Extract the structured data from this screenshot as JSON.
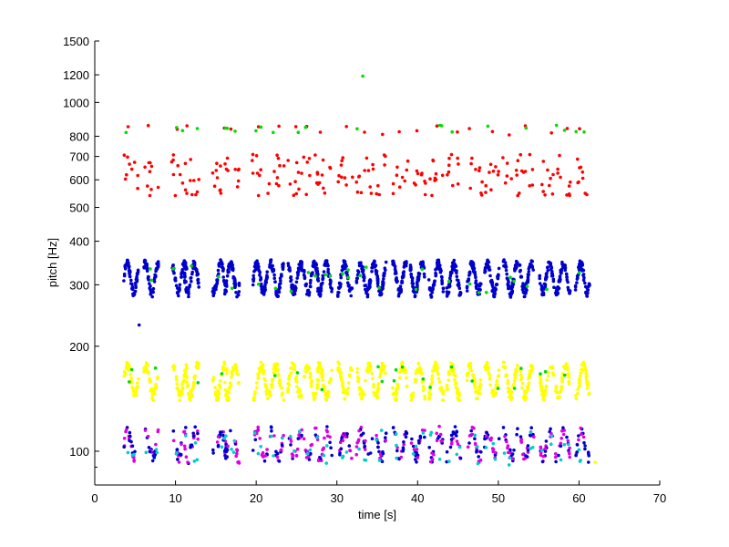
{
  "chart_data": {
    "type": "scatter",
    "title": "",
    "xlabel": "time [s]",
    "ylabel": "pitch [Hz]",
    "xlim": [
      0,
      70
    ],
    "ylim": [
      80,
      1500
    ],
    "yscale": "log",
    "grid": false,
    "legend": "none",
    "x_ticks": [
      {
        "value": 0,
        "label": "0"
      },
      {
        "value": 10,
        "label": "10"
      },
      {
        "value": 20,
        "label": "20"
      },
      {
        "value": 30,
        "label": "30"
      },
      {
        "value": 40,
        "label": "40"
      },
      {
        "value": 50,
        "label": "50"
      },
      {
        "value": 60,
        "label": "60"
      },
      {
        "value": 70,
        "label": "70"
      }
    ],
    "y_ticks": [
      {
        "value": 100,
        "label": "100"
      },
      {
        "value": 200,
        "label": "200"
      },
      {
        "value": 300,
        "label": "300"
      },
      {
        "value": 400,
        "label": "400"
      },
      {
        "value": 500,
        "label": "500"
      },
      {
        "value": 600,
        "label": "600"
      },
      {
        "value": 700,
        "label": "700"
      },
      {
        "value": 800,
        "label": "800"
      },
      {
        "value": 1000,
        "label": "1000"
      },
      {
        "value": 1200,
        "label": "1200"
      },
      {
        "value": 1500,
        "label": "1500"
      }
    ],
    "y_minor_ticks": [
      90
    ],
    "beats": [
      4.5,
      7,
      10.5,
      12,
      15.5,
      17,
      20.5,
      22.5,
      24.8,
      26.8,
      28.5,
      31,
      33.3,
      35.2,
      37.8,
      40,
      42.3,
      44.5,
      47,
      49.2,
      51.5,
      53.5,
      56,
      58,
      60.4
    ],
    "series": [
      {
        "name": "red",
        "color": "#ff0000",
        "band": [
          530,
          880
        ],
        "sparse": true
      },
      {
        "name": "blue",
        "color": "#0000cc",
        "band": [
          270,
          365
        ],
        "center": 315
      },
      {
        "name": "yellow",
        "color": "#ffff00",
        "band": [
          140,
          180
        ],
        "center": 160
      },
      {
        "name": "magenta",
        "color": "#e000e0",
        "band": [
          92,
          118
        ],
        "center": 105
      },
      {
        "name": "green",
        "color": "#00dd00",
        "band": [
          140,
          880
        ],
        "sparse": true
      },
      {
        "name": "cyan",
        "color": "#00cccc",
        "band": [
          88,
          118
        ],
        "sparse": true
      }
    ],
    "highlighted_points": [
      {
        "x": 33.2,
        "y": 1190,
        "series": "green"
      },
      {
        "x": 5.5,
        "y": 230,
        "series": "blue"
      },
      {
        "x": 62,
        "y": 93,
        "series": "yellow"
      }
    ]
  }
}
